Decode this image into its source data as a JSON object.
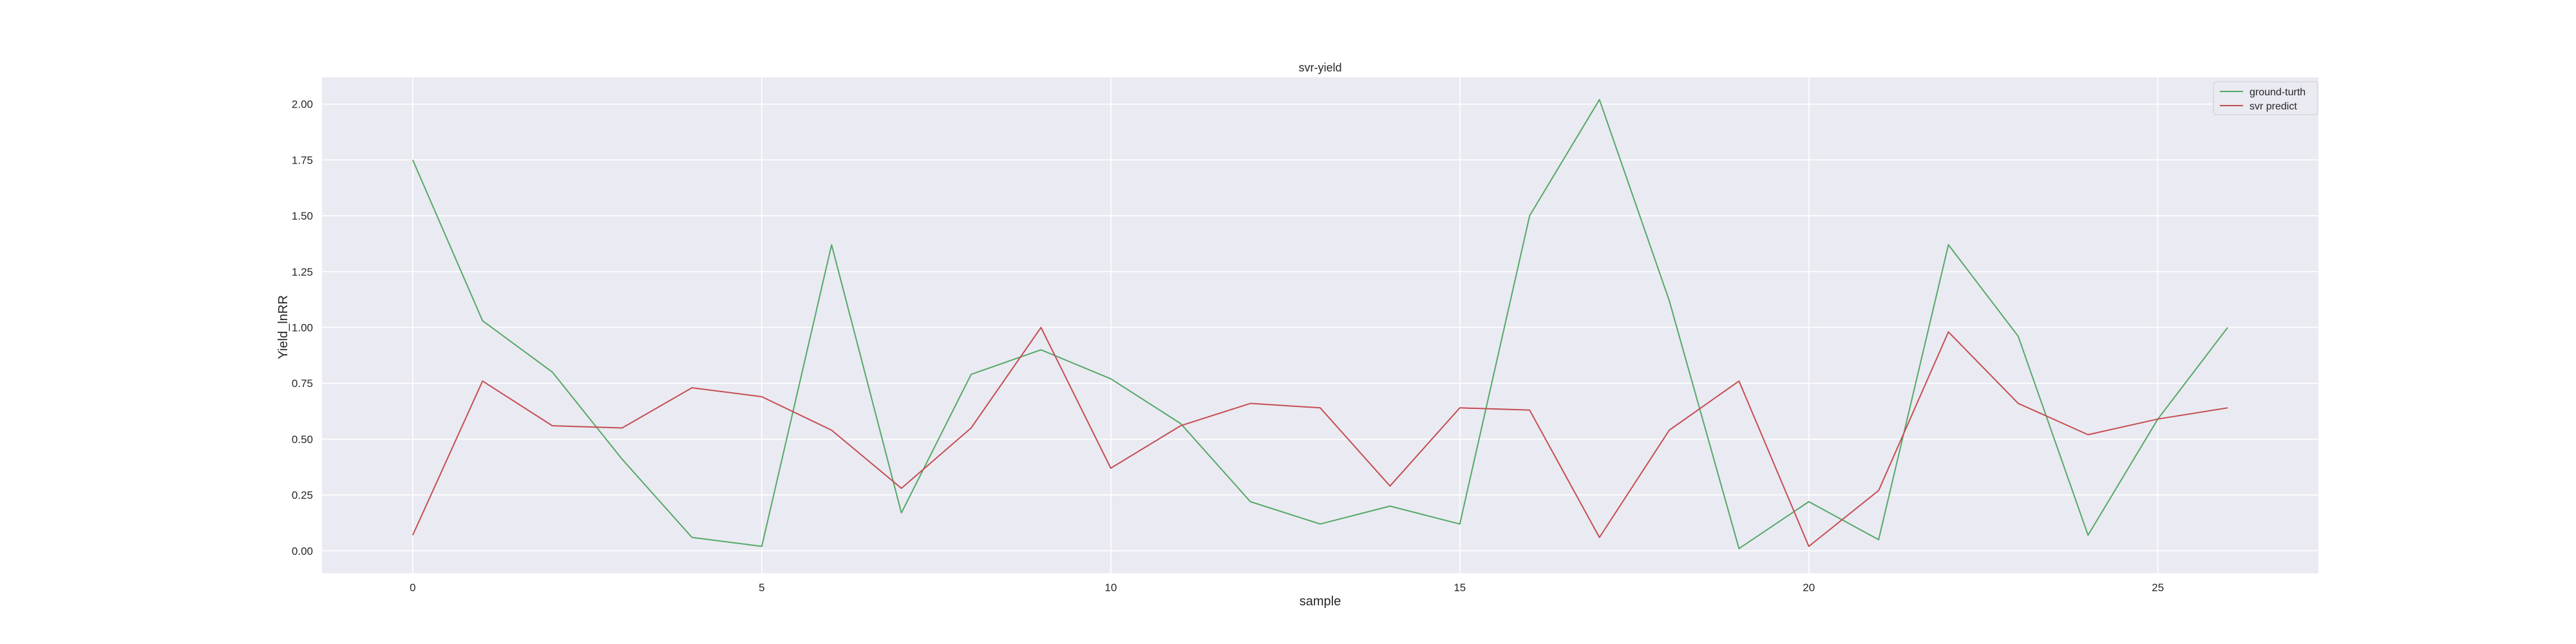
{
  "chart_data": {
    "type": "line",
    "title": "svr-yield",
    "xlabel": "sample",
    "ylabel": "Yield_lnRR",
    "xlim": [
      -1.3,
      27.3
    ],
    "ylim": [
      -0.1,
      2.12
    ],
    "x": [
      0,
      1,
      2,
      3,
      4,
      5,
      6,
      7,
      8,
      9,
      10,
      11,
      12,
      13,
      14,
      15,
      16,
      17,
      18,
      19,
      20,
      21,
      22,
      23,
      24,
      25,
      26
    ],
    "xticks": [
      0,
      5,
      10,
      15,
      20,
      25
    ],
    "xtick_labels": [
      "0",
      "5",
      "10",
      "15",
      "20",
      "25"
    ],
    "yticks": [
      0.0,
      0.25,
      0.5,
      0.75,
      1.0,
      1.25,
      1.5,
      1.75,
      2.0
    ],
    "ytick_labels": [
      "0.00",
      "0.25",
      "0.50",
      "0.75",
      "1.00",
      "1.25",
      "1.50",
      "1.75",
      "2.00"
    ],
    "grid": true,
    "legend_position": "top-right",
    "series": [
      {
        "name": "ground-turth",
        "color": "#55a868",
        "values": [
          1.75,
          1.03,
          0.8,
          0.41,
          0.06,
          0.02,
          1.37,
          0.17,
          0.79,
          0.9,
          0.77,
          0.57,
          0.22,
          0.12,
          0.2,
          0.12,
          1.5,
          2.02,
          1.12,
          0.01,
          0.22,
          0.05,
          1.37,
          0.96,
          0.07,
          0.59,
          1.0
        ]
      },
      {
        "name": "svr predict",
        "color": "#c44e52",
        "values": [
          0.07,
          0.76,
          0.56,
          0.55,
          0.73,
          0.69,
          0.54,
          0.28,
          0.55,
          1.0,
          0.37,
          0.56,
          0.66,
          0.64,
          0.29,
          0.64,
          0.63,
          0.06,
          0.54,
          0.76,
          0.02,
          0.27,
          0.98,
          0.66,
          0.52,
          0.59,
          0.64
        ]
      }
    ]
  }
}
